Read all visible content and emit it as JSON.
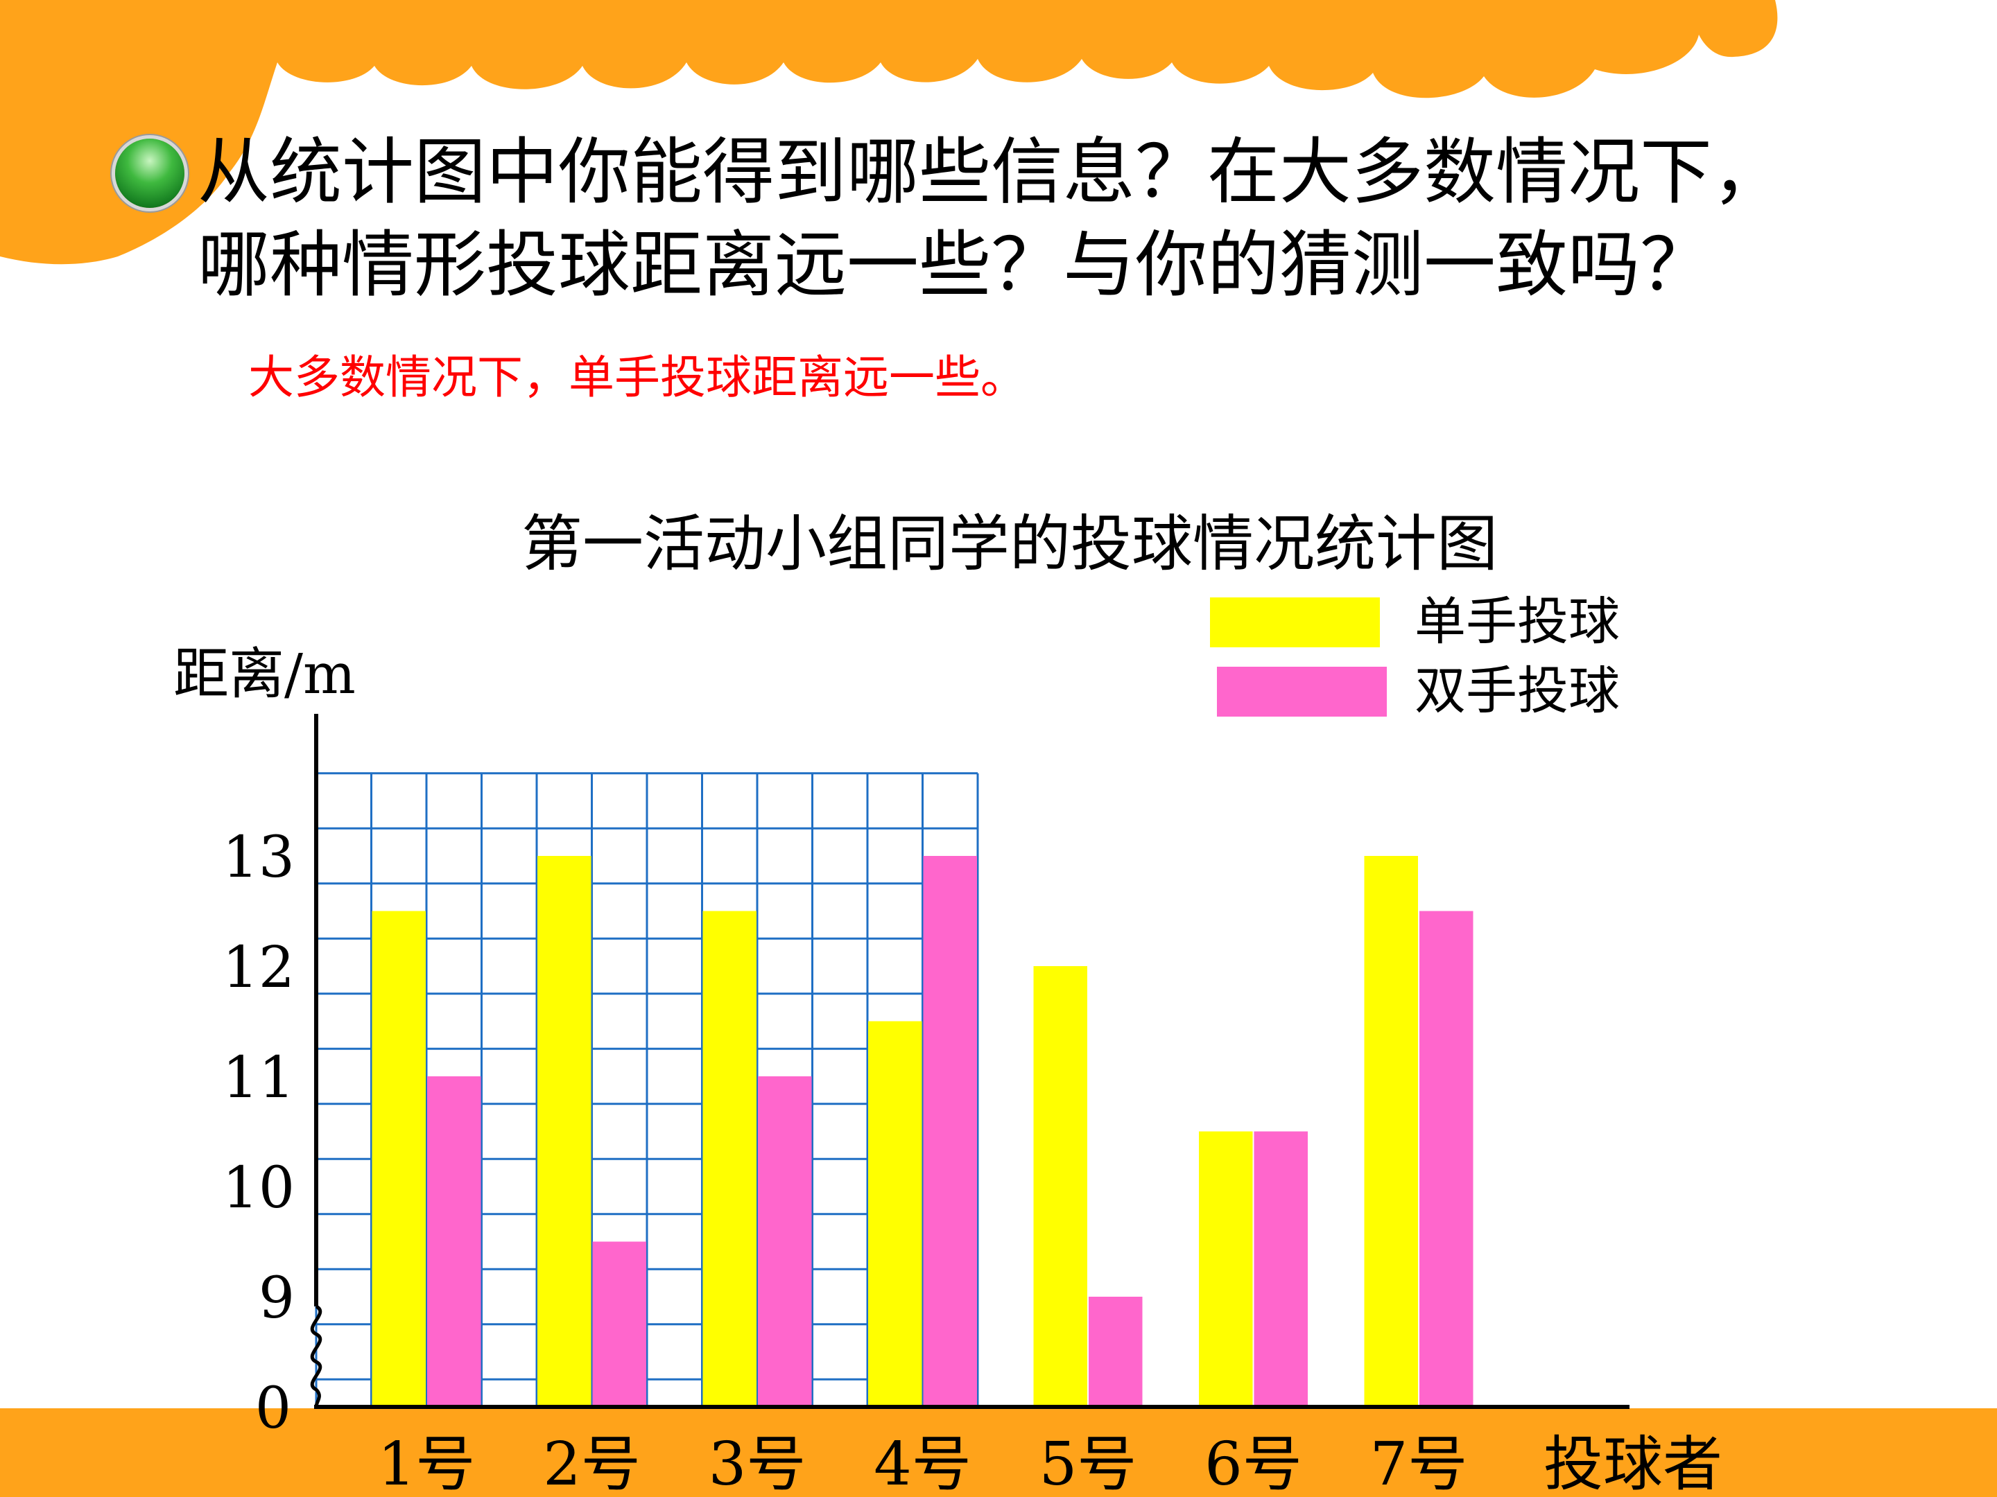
{
  "question": {
    "line1": "从统计图中你能得到哪些信息？在大多数情况下，",
    "line2": "哪种情形投球距离远一些？与你的猜测一致吗？"
  },
  "answer": "大多数情况下，单手投球距离远一些。",
  "colors": {
    "header_orange": "#ffa31a",
    "single_hand": "#ffff00",
    "two_hand": "#ff66cc",
    "grid": "#1f6fc4",
    "answer": "#ff0000"
  },
  "chart_data": {
    "type": "bar",
    "title": "第一活动小组同学的投球情况统计图",
    "ylabel": "距离/m",
    "xlabel": "投球者",
    "categories": [
      "1号",
      "2号",
      "3号",
      "4号",
      "5号",
      "6号",
      "7号"
    ],
    "series": [
      {
        "name": "单手投球",
        "values": [
          12.5,
          13,
          12.5,
          11.5,
          12,
          10.5,
          13
        ]
      },
      {
        "name": "双手投球",
        "values": [
          11,
          9.5,
          11,
          13,
          9,
          10.5,
          12.5
        ]
      }
    ],
    "yticks": [
      "0",
      "9",
      "10",
      "11",
      "12",
      "13"
    ],
    "ylim": [
      8,
      13.5
    ],
    "axis_break": true,
    "grid": true,
    "legend": "top-right"
  }
}
